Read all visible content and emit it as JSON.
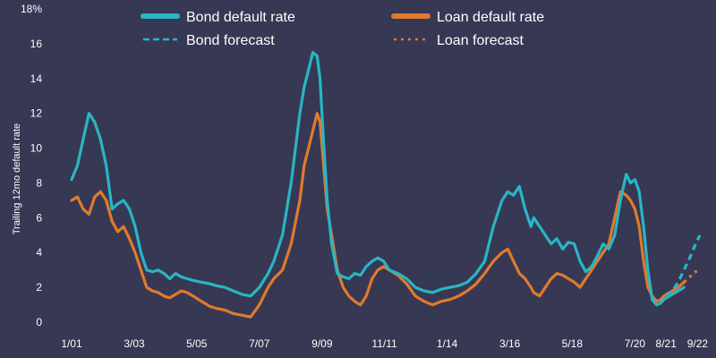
{
  "chart_data": {
    "type": "line",
    "ylabel": "Trailing 12mo default rate",
    "ylim": [
      0,
      18
    ],
    "yticks": [
      "0",
      "2",
      "4",
      "6",
      "8",
      "10",
      "12",
      "14",
      "16",
      "18%"
    ],
    "xlim": [
      2001.0,
      2022.75
    ],
    "xticks": [
      {
        "label": "1/01",
        "x": 2001.0
      },
      {
        "label": "3/03",
        "x": 2003.17
      },
      {
        "label": "5/05",
        "x": 2005.33
      },
      {
        "label": "7/07",
        "x": 2007.5
      },
      {
        "label": "9/09",
        "x": 2009.67
      },
      {
        "label": "11/11",
        "x": 2011.83
      },
      {
        "label": "1/14",
        "x": 2014.0
      },
      {
        "label": "3/16",
        "x": 2016.17
      },
      {
        "label": "5/18",
        "x": 2018.33
      },
      {
        "label": "7/20",
        "x": 2020.5
      },
      {
        "label": "8/21",
        "x": 2021.58
      },
      {
        "label": "9/22",
        "x": 2022.67
      }
    ],
    "legend_position": "top",
    "series": [
      {
        "name": "Bond default rate",
        "color": "#2ab5c4",
        "style": "solid",
        "x": [
          2001.0,
          2001.2,
          2001.4,
          2001.6,
          2001.8,
          2002.0,
          2002.2,
          2002.4,
          2002.6,
          2002.8,
          2003.0,
          2003.2,
          2003.4,
          2003.6,
          2003.8,
          2004.0,
          2004.2,
          2004.4,
          2004.6,
          2004.8,
          2005.0,
          2005.2,
          2005.5,
          2005.8,
          2006.0,
          2006.3,
          2006.6,
          2006.9,
          2007.2,
          2007.5,
          2007.8,
          2008.0,
          2008.3,
          2008.6,
          2008.9,
          2009.05,
          2009.2,
          2009.35,
          2009.5,
          2009.6,
          2009.7,
          2009.85,
          2010.0,
          2010.2,
          2010.4,
          2010.6,
          2010.8,
          2011.0,
          2011.2,
          2011.4,
          2011.6,
          2011.8,
          2012.0,
          2012.3,
          2012.6,
          2012.9,
          2013.2,
          2013.5,
          2013.8,
          2014.1,
          2014.4,
          2014.7,
          2015.0,
          2015.3,
          2015.6,
          2015.9,
          2016.1,
          2016.3,
          2016.5,
          2016.7,
          2016.9,
          2017.0,
          2017.2,
          2017.4,
          2017.6,
          2017.8,
          2018.0,
          2018.2,
          2018.4,
          2018.6,
          2018.8,
          2019.0,
          2019.2,
          2019.4,
          2019.6,
          2019.8,
          2020.0,
          2020.2,
          2020.35,
          2020.5,
          2020.65,
          2020.8,
          2020.95,
          2021.1,
          2021.25,
          2021.4,
          2021.5,
          2021.6,
          2021.8,
          2022.0,
          2022.2
        ],
        "values": [
          8.2,
          9.0,
          10.5,
          12.0,
          11.5,
          10.5,
          9.0,
          6.5,
          6.8,
          7.0,
          6.5,
          5.5,
          4.0,
          3.0,
          2.9,
          3.0,
          2.8,
          2.5,
          2.8,
          2.6,
          2.5,
          2.4,
          2.3,
          2.2,
          2.1,
          2.0,
          1.8,
          1.6,
          1.5,
          2.0,
          2.8,
          3.5,
          5.0,
          8.0,
          12.0,
          13.5,
          14.5,
          15.5,
          15.3,
          14.0,
          11.0,
          7.0,
          4.5,
          2.8,
          2.6,
          2.5,
          2.8,
          2.7,
          3.2,
          3.5,
          3.7,
          3.5,
          3.0,
          2.8,
          2.5,
          2.0,
          1.8,
          1.7,
          1.9,
          2.0,
          2.1,
          2.3,
          2.8,
          3.5,
          5.5,
          7.0,
          7.5,
          7.3,
          7.8,
          6.5,
          5.5,
          6.0,
          5.5,
          5.0,
          4.5,
          4.8,
          4.2,
          4.6,
          4.5,
          3.5,
          2.9,
          3.2,
          3.8,
          4.5,
          4.2,
          5.0,
          7.0,
          8.5,
          8.0,
          8.2,
          7.5,
          5.5,
          3.0,
          1.3,
          1.0,
          1.1,
          1.3,
          1.4,
          1.6,
          1.8,
          2.0
        ]
      },
      {
        "name": "Loan default rate",
        "color": "#e07a2d",
        "style": "solid",
        "x": [
          2001.0,
          2001.2,
          2001.4,
          2001.6,
          2001.8,
          2002.0,
          2002.2,
          2002.4,
          2002.6,
          2002.8,
          2003.0,
          2003.2,
          2003.4,
          2003.6,
          2003.8,
          2004.0,
          2004.2,
          2004.4,
          2004.6,
          2004.8,
          2005.0,
          2005.2,
          2005.5,
          2005.8,
          2006.0,
          2006.3,
          2006.6,
          2006.9,
          2007.2,
          2007.5,
          2007.8,
          2008.0,
          2008.3,
          2008.6,
          2008.9,
          2009.05,
          2009.2,
          2009.35,
          2009.5,
          2009.6,
          2009.7,
          2009.85,
          2010.0,
          2010.2,
          2010.4,
          2010.6,
          2010.8,
          2011.0,
          2011.2,
          2011.4,
          2011.6,
          2011.8,
          2012.0,
          2012.3,
          2012.6,
          2012.9,
          2013.2,
          2013.5,
          2013.8,
          2014.1,
          2014.4,
          2014.7,
          2015.0,
          2015.3,
          2015.6,
          2015.9,
          2016.1,
          2016.3,
          2016.5,
          2016.7,
          2016.9,
          2017.0,
          2017.2,
          2017.4,
          2017.6,
          2017.8,
          2018.0,
          2018.2,
          2018.4,
          2018.6,
          2018.8,
          2019.0,
          2019.2,
          2019.4,
          2019.6,
          2019.8,
          2020.0,
          2020.2,
          2020.35,
          2020.5,
          2020.65,
          2020.8,
          2020.95,
          2021.1,
          2021.25,
          2021.4,
          2021.5,
          2021.6,
          2021.8,
          2022.0,
          2022.2
        ],
        "values": [
          7.0,
          7.2,
          6.5,
          6.2,
          7.2,
          7.5,
          7.0,
          5.8,
          5.2,
          5.5,
          4.8,
          4.0,
          3.0,
          2.0,
          1.8,
          1.7,
          1.5,
          1.4,
          1.6,
          1.8,
          1.7,
          1.5,
          1.2,
          0.9,
          0.8,
          0.7,
          0.5,
          0.4,
          0.3,
          1.0,
          2.0,
          2.5,
          3.0,
          4.5,
          7.0,
          9.0,
          10.0,
          11.0,
          12.0,
          11.5,
          9.5,
          6.5,
          5.0,
          3.0,
          2.0,
          1.5,
          1.2,
          1.0,
          1.5,
          2.5,
          3.0,
          3.2,
          3.0,
          2.7,
          2.2,
          1.5,
          1.2,
          1.0,
          1.2,
          1.3,
          1.5,
          1.8,
          2.2,
          2.8,
          3.5,
          4.0,
          4.2,
          3.5,
          2.8,
          2.5,
          2.0,
          1.7,
          1.5,
          2.0,
          2.5,
          2.8,
          2.7,
          2.5,
          2.3,
          2.0,
          2.5,
          3.0,
          3.5,
          4.0,
          4.5,
          6.0,
          7.5,
          7.3,
          7.0,
          6.5,
          5.5,
          3.5,
          2.0,
          1.5,
          1.2,
          1.3,
          1.5,
          1.6,
          1.8,
          2.0,
          2.3
        ]
      },
      {
        "name": "Bond forecast",
        "color": "#2ab5c4",
        "style": "dashed",
        "x": [
          2021.6,
          2021.8,
          2022.0,
          2022.2,
          2022.4,
          2022.6,
          2022.75
        ],
        "values": [
          1.5,
          1.8,
          2.3,
          3.0,
          3.7,
          4.5,
          5.0
        ]
      },
      {
        "name": "Loan forecast",
        "color": "#e07a2d",
        "style": "dotted",
        "x": [
          2021.6,
          2021.8,
          2022.0,
          2022.2,
          2022.4,
          2022.6,
          2022.75
        ],
        "values": [
          1.6,
          1.8,
          2.0,
          2.3,
          2.6,
          2.9,
          3.0
        ]
      }
    ]
  }
}
